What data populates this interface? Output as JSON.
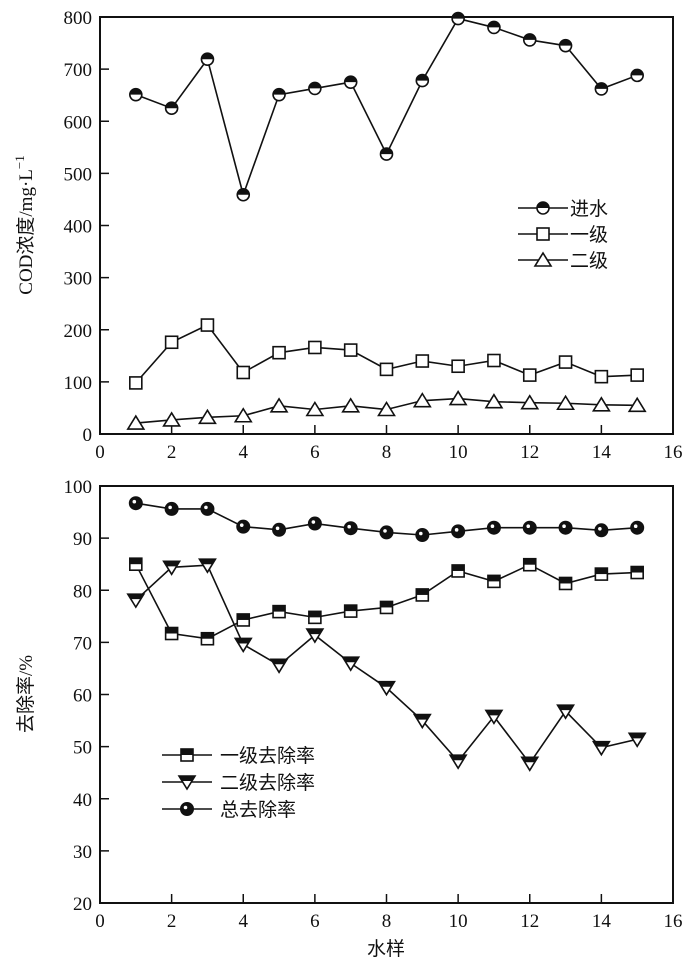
{
  "chart_data": [
    {
      "type": "line",
      "title": "",
      "xlabel": "",
      "ylabel": "COD浓度/mg·L",
      "ylabel_superscript": "−1",
      "xlim": [
        0,
        16
      ],
      "ylim": [
        0,
        800
      ],
      "xticks": [
        0,
        2,
        4,
        6,
        8,
        10,
        12,
        14,
        16
      ],
      "yticks": [
        0,
        100,
        200,
        300,
        400,
        500,
        600,
        700,
        800
      ],
      "grid": false,
      "legend_position": "center-right",
      "x": [
        1,
        2,
        3,
        4,
        5,
        6,
        7,
        8,
        9,
        10,
        11,
        12,
        13,
        14,
        15
      ],
      "series": [
        {
          "name": "进水",
          "marker": "half-filled-circle",
          "values": [
            651,
            625,
            719,
            459,
            651,
            663,
            675,
            537,
            678,
            797,
            780,
            756,
            745,
            662,
            688
          ]
        },
        {
          "name": "一级",
          "marker": "open-square",
          "values": [
            98,
            176,
            209,
            118,
            156,
            166,
            161,
            124,
            140,
            130,
            141,
            113,
            138,
            110,
            113
          ]
        },
        {
          "name": "二级",
          "marker": "open-triangle-up",
          "values": [
            21,
            27,
            32,
            35,
            54,
            47,
            54,
            47,
            64,
            68,
            62,
            60,
            59,
            56,
            55
          ]
        }
      ]
    },
    {
      "type": "line",
      "title": "",
      "xlabel": "水样",
      "ylabel": "去除率/%",
      "xlim": [
        0,
        16
      ],
      "ylim": [
        20,
        100
      ],
      "xticks": [
        0,
        2,
        4,
        6,
        8,
        10,
        12,
        14,
        16
      ],
      "yticks": [
        20,
        30,
        40,
        50,
        60,
        70,
        80,
        90,
        100
      ],
      "grid": false,
      "legend_position": "lower-left",
      "x": [
        1,
        2,
        3,
        4,
        5,
        6,
        7,
        8,
        9,
        10,
        11,
        12,
        13,
        14,
        15
      ],
      "series": [
        {
          "name": "一级去除率",
          "marker": "half-filled-square",
          "values": [
            85.0,
            71.7,
            70.7,
            74.3,
            75.9,
            74.8,
            76.0,
            76.7,
            79.1,
            83.7,
            81.7,
            84.9,
            81.3,
            83.1,
            83.4
          ]
        },
        {
          "name": "二级去除率",
          "marker": "half-filled-triangle-down",
          "values": [
            78.1,
            84.4,
            84.8,
            69.6,
            65.6,
            71.4,
            66.0,
            61.3,
            55.0,
            47.2,
            55.8,
            46.8,
            56.8,
            49.8,
            51.4
          ]
        },
        {
          "name": "总去除率",
          "marker": "filled-circle-white-dot",
          "values": [
            96.7,
            95.6,
            95.6,
            92.2,
            91.6,
            92.8,
            91.9,
            91.1,
            90.6,
            91.3,
            92.0,
            92.0,
            92.0,
            91.5,
            92.0
          ]
        }
      ]
    }
  ]
}
